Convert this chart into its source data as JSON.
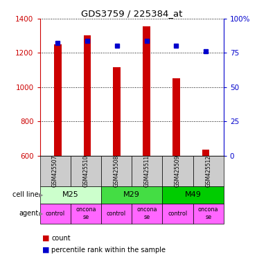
{
  "title": "GDS3759 / 225384_at",
  "samples": [
    "GSM425507",
    "GSM425510",
    "GSM425508",
    "GSM425511",
    "GSM425509",
    "GSM425512"
  ],
  "counts": [
    1249,
    1302,
    1118,
    1355,
    1052,
    635
  ],
  "percentiles": [
    82,
    84,
    80,
    84,
    80,
    76
  ],
  "ylim_left": [
    600,
    1400
  ],
  "ylim_right": [
    0,
    100
  ],
  "yticks_left": [
    600,
    800,
    1000,
    1200,
    1400
  ],
  "yticks_right": [
    0,
    25,
    50,
    75,
    100
  ],
  "bar_color": "#cc0000",
  "dot_color": "#0000cc",
  "cell_lines": [
    {
      "label": "M25",
      "cols": [
        0,
        1
      ],
      "color": "#ccffcc"
    },
    {
      "label": "M29",
      "cols": [
        2,
        3
      ],
      "color": "#44dd44"
    },
    {
      "label": "M49",
      "cols": [
        4,
        5
      ],
      "color": "#00cc00"
    }
  ],
  "agent_display": [
    "control",
    "oncona\nse",
    "control",
    "oncona\nse",
    "control",
    "oncona\nse"
  ],
  "agent_color": "#ff66ff",
  "sample_bg_color": "#cccccc",
  "left_axis_color": "#cc0000",
  "right_axis_color": "#0000cc",
  "bar_width": 0.25
}
